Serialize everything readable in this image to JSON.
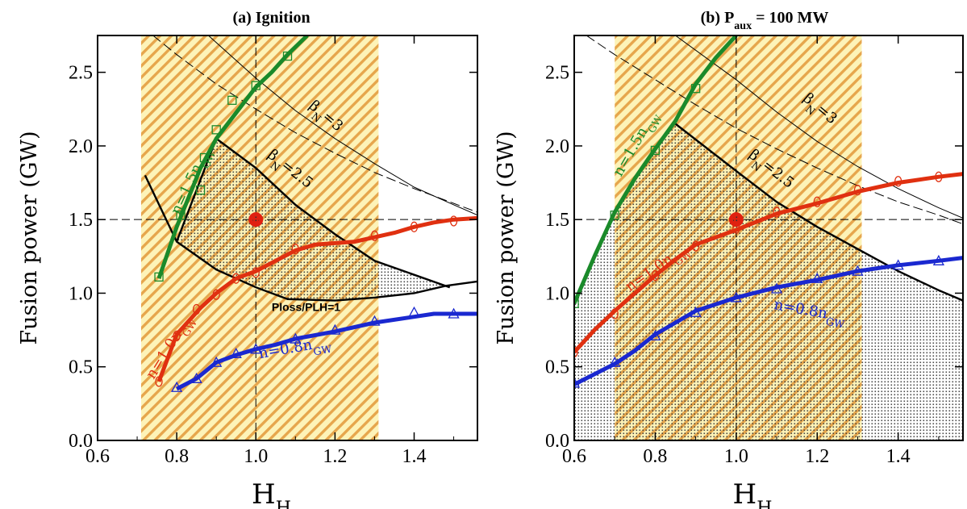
{
  "chart_data": [
    {
      "type": "line",
      "title": "(a)  Ignition",
      "xlabel": "H",
      "xlabel_sub": "H",
      "ylabel": "Fusion power (GW)",
      "xlim": [
        0.6,
        1.56
      ],
      "ylim": [
        0.0,
        2.75
      ],
      "xticks": [
        "0.6",
        "0.8",
        "1.0",
        "1.2",
        "1.4"
      ],
      "yticks": [
        "0.0",
        "0.5",
        "1.0",
        "1.5",
        "2.0",
        "2.5"
      ],
      "shaded_band": {
        "x": [
          0.71,
          1.31
        ]
      },
      "reference_point": {
        "x": 1.0,
        "y": 1.5
      },
      "reference_lines": {
        "x": 1.0,
        "y": 1.5
      },
      "series": [
        {
          "name": "n=1.5n",
          "sub": "GW",
          "color": "#1a8a2a",
          "x": [
            0.755,
            0.8,
            0.86,
            0.9,
            1.0,
            1.04,
            1.08,
            1.13
          ],
          "y": [
            1.1,
            1.45,
            1.85,
            2.05,
            2.4,
            2.5,
            2.62,
            2.75
          ],
          "marker_x": [
            0.755,
            0.81,
            0.86,
            0.87,
            0.9,
            0.94,
            1.0,
            1.08
          ],
          "marker_y": [
            1.11,
            1.53,
            1.7,
            1.92,
            2.11,
            2.31,
            2.41,
            2.61
          ]
        },
        {
          "name": "n=1.0n",
          "sub": "GW",
          "color": "#e03010",
          "x": [
            0.755,
            0.8,
            0.86,
            0.9,
            0.95,
            1.0,
            1.05,
            1.1,
            1.15,
            1.2,
            1.25,
            1.3,
            1.35,
            1.4,
            1.45,
            1.5,
            1.56
          ],
          "y": [
            0.4,
            0.72,
            0.9,
            1.0,
            1.1,
            1.15,
            1.22,
            1.29,
            1.33,
            1.34,
            1.35,
            1.38,
            1.41,
            1.45,
            1.48,
            1.5,
            1.51
          ],
          "marker_x": [
            0.755,
            0.8,
            0.85,
            0.9,
            0.95,
            1.0,
            1.1,
            1.3,
            1.4,
            1.5
          ],
          "marker_y": [
            0.4,
            0.71,
            0.89,
            0.99,
            1.1,
            1.14,
            1.3,
            1.39,
            1.45,
            1.49
          ]
        },
        {
          "name": "n=0.8n",
          "sub": "GW",
          "color": "#1a28d0",
          "x": [
            0.8,
            0.85,
            0.9,
            0.95,
            1.0,
            1.05,
            1.1,
            1.2,
            1.3,
            1.4,
            1.45,
            1.5,
            1.56
          ],
          "y": [
            0.35,
            0.42,
            0.53,
            0.58,
            0.62,
            0.65,
            0.69,
            0.74,
            0.8,
            0.84,
            0.86,
            0.86,
            0.86
          ],
          "marker_x": [
            0.8,
            0.85,
            0.9,
            0.95,
            1.0,
            1.1,
            1.2,
            1.3,
            1.4,
            1.5
          ],
          "marker_y": [
            0.36,
            0.42,
            0.53,
            0.59,
            0.62,
            0.69,
            0.75,
            0.81,
            0.87,
            0.86
          ]
        }
      ],
      "boundaries": [
        {
          "label": "Ploss/PLH=1",
          "x": [
            0.72,
            0.8,
            0.9,
            1.0,
            1.08,
            1.2,
            1.3,
            1.4,
            1.48,
            1.56
          ],
          "y": [
            1.8,
            1.35,
            1.16,
            1.04,
            0.96,
            0.95,
            0.97,
            1.0,
            1.05,
            1.08
          ]
        },
        {
          "label": "βN=2.5",
          "x": [
            0.8,
            0.9,
            1.0,
            1.1,
            1.2,
            1.3,
            1.49
          ],
          "y": [
            1.35,
            2.05,
            1.85,
            1.6,
            1.4,
            1.22,
            1.04
          ]
        }
      ],
      "beta_curves": [
        {
          "label": "βN=3",
          "x": [
            0.88,
            1.0,
            1.1,
            1.2,
            1.3,
            1.4,
            1.5,
            1.56
          ],
          "y": [
            2.75,
            2.46,
            2.24,
            2.05,
            1.88,
            1.72,
            1.6,
            1.53
          ]
        },
        {
          "label": "dashed",
          "x": [
            0.74,
            0.8,
            0.9,
            1.0,
            1.1,
            1.2,
            1.3,
            1.4,
            1.5,
            1.56
          ],
          "y": [
            2.75,
            2.62,
            2.42,
            2.25,
            2.09,
            1.95,
            1.82,
            1.71,
            1.61,
            1.55
          ]
        }
      ],
      "annotations": [
        {
          "text": "β",
          "sub": "N",
          "tail": "=3"
        },
        {
          "text": "β",
          "sub": "N",
          "tail": "=2.5"
        },
        {
          "text": "Ploss/PLH=1"
        }
      ]
    },
    {
      "type": "line",
      "title": "(b) P",
      "title_sub": "aux",
      "title_tail": " = 100 MW",
      "xlabel": "H",
      "xlabel_sub": "H",
      "ylabel": "Fusion power (GW)",
      "xlim": [
        0.6,
        1.56
      ],
      "ylim": [
        0.0,
        2.75
      ],
      "xticks": [
        "0.6",
        "0.8",
        "1.0",
        "1.2",
        "1.4"
      ],
      "yticks": [
        "0.0",
        "0.5",
        "1.0",
        "1.5",
        "2.0",
        "2.5"
      ],
      "shaded_band": {
        "x": [
          0.7,
          1.31
        ]
      },
      "reference_point": {
        "x": 1.0,
        "y": 1.5
      },
      "reference_lines": {
        "x": 1.0,
        "y": 1.5
      },
      "series": [
        {
          "name": "n=1.5n",
          "sub": "GW",
          "color": "#1a8a2a",
          "x": [
            0.6,
            0.65,
            0.7,
            0.75,
            0.8,
            0.85,
            0.9,
            0.95,
            1.0
          ],
          "y": [
            0.93,
            1.25,
            1.55,
            1.78,
            1.98,
            2.17,
            2.42,
            2.6,
            2.75
          ],
          "marker_x": [
            0.6,
            0.7,
            0.8,
            0.9
          ],
          "marker_y": [
            0.93,
            1.53,
            1.97,
            2.39
          ]
        },
        {
          "name": "n=1.0n",
          "sub": "GW",
          "color": "#e03010",
          "x": [
            0.6,
            0.65,
            0.7,
            0.75,
            0.8,
            0.85,
            0.9,
            1.0,
            1.1,
            1.2,
            1.3,
            1.4,
            1.5,
            1.56
          ],
          "y": [
            0.6,
            0.75,
            0.88,
            1.0,
            1.12,
            1.23,
            1.33,
            1.43,
            1.54,
            1.61,
            1.69,
            1.75,
            1.79,
            1.81
          ],
          "marker_x": [
            0.6,
            0.7,
            0.8,
            0.9,
            1.0,
            1.1,
            1.2,
            1.3,
            1.4,
            1.5
          ],
          "marker_y": [
            0.6,
            0.86,
            1.12,
            1.32,
            1.44,
            1.55,
            1.62,
            1.7,
            1.76,
            1.79
          ]
        },
        {
          "name": "n=0.8n",
          "sub": "GW",
          "color": "#1a28d0",
          "x": [
            0.6,
            0.7,
            0.75,
            0.8,
            0.85,
            0.9,
            1.0,
            1.1,
            1.2,
            1.3,
            1.4,
            1.5,
            1.56
          ],
          "y": [
            0.38,
            0.52,
            0.61,
            0.72,
            0.8,
            0.88,
            0.97,
            1.04,
            1.09,
            1.15,
            1.19,
            1.22,
            1.24
          ],
          "marker_x": [
            0.6,
            0.7,
            0.8,
            0.9,
            1.0,
            1.1,
            1.2,
            1.3,
            1.4,
            1.5
          ],
          "marker_y": [
            0.39,
            0.53,
            0.71,
            0.87,
            0.97,
            1.03,
            1.1,
            1.15,
            1.19,
            1.22
          ]
        }
      ],
      "boundaries": [
        {
          "label": "βN=2.5",
          "x": [
            0.85,
            1.0,
            1.1,
            1.2,
            1.3,
            1.4,
            1.5,
            1.56
          ],
          "y": [
            2.15,
            1.83,
            1.62,
            1.45,
            1.3,
            1.15,
            1.02,
            0.95
          ]
        }
      ],
      "beta_curves": [
        {
          "label": "βN=3",
          "x": [
            0.85,
            1.0,
            1.1,
            1.2,
            1.3,
            1.4,
            1.5,
            1.56
          ],
          "y": [
            2.75,
            2.45,
            2.23,
            2.03,
            1.86,
            1.71,
            1.58,
            1.51
          ]
        },
        {
          "label": "dashed",
          "x": [
            0.63,
            0.7,
            0.8,
            0.9,
            1.0,
            1.1,
            1.2,
            1.3,
            1.4,
            1.5,
            1.56
          ],
          "y": [
            2.75,
            2.62,
            2.45,
            2.28,
            2.12,
            1.98,
            1.85,
            1.73,
            1.62,
            1.53,
            1.47
          ]
        }
      ],
      "annotations": [
        {
          "text": "β",
          "sub": "N",
          "tail": "=3"
        },
        {
          "text": "β",
          "sub": "N",
          "tail": "=2.5"
        }
      ]
    }
  ]
}
